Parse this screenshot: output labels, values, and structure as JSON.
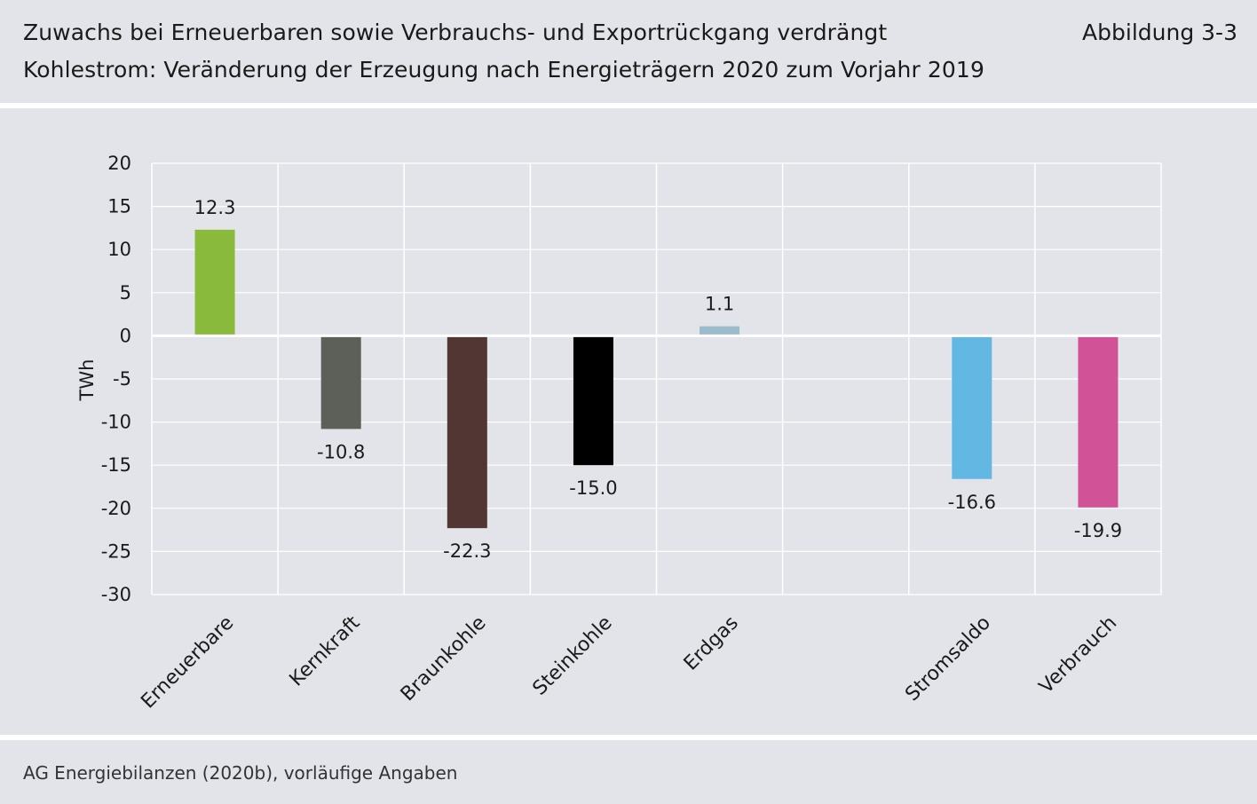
{
  "header": {
    "title_line1": "Zuwachs bei Erneuerbaren sowie Verbrauchs- und Exportrückgang verdrängt",
    "title_line2": "Kohlestrom: Veränderung der Erzeugung nach Energieträgern 2020 zum Vorjahr 2019",
    "figure_label": "Abbildung 3-3"
  },
  "footer": {
    "source": "AG Energiebilanzen (2020b), vorläufige Angaben"
  },
  "chart_data": {
    "type": "bar",
    "categories": [
      "Erneuerbare",
      "Kernkraft",
      "Braunkohle",
      "Steinkohle",
      "Erdgas",
      "",
      "Stromsaldo",
      "Verbrauch"
    ],
    "values": [
      12.3,
      -10.8,
      -22.3,
      -15.0,
      1.1,
      null,
      -16.6,
      -19.9
    ],
    "value_labels": [
      "12.3",
      "-10.8",
      "-22.3",
      "-15.0",
      "1.1",
      "",
      "-16.6",
      "-19.9"
    ],
    "colors": [
      "#8aba3c",
      "#5d5f59",
      "#523633",
      "#000000",
      "#9bbccb",
      "",
      "#62b8e3",
      "#d15296"
    ],
    "ylabel": "TWh",
    "ylim": [
      -30,
      20
    ],
    "yticks": [
      20,
      15,
      10,
      5,
      0,
      -5,
      -10,
      -15,
      -20,
      -25,
      -30
    ],
    "grid": true,
    "legend": "none"
  }
}
